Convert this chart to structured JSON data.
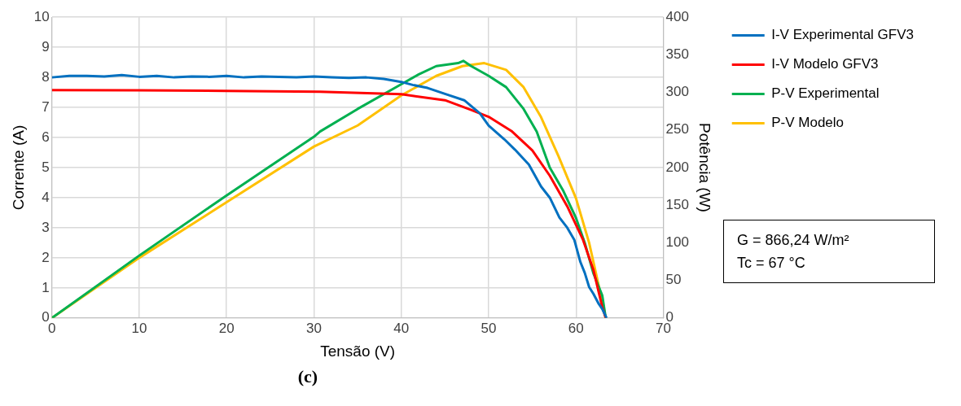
{
  "chart_data": {
    "type": "line",
    "xlabel": "Tensão (V)",
    "ylabel": "Corrente (A)",
    "y2label": "Potência (W)",
    "xlim": [
      0,
      70
    ],
    "xticks": [
      0,
      10,
      20,
      30,
      40,
      50,
      60,
      70
    ],
    "ylim": [
      0,
      10
    ],
    "yticks": [
      0,
      1,
      2,
      3,
      4,
      5,
      6,
      7,
      8,
      9,
      10
    ],
    "y2lim": [
      0,
      400
    ],
    "y2ticks": [
      0,
      50,
      100,
      150,
      200,
      250,
      300,
      350,
      400
    ],
    "grid": true,
    "legend": "right",
    "marker": "none",
    "line_style": "solid",
    "annotations": [
      "G = 866,24 W/m²\nTc = 67 °C",
      "(c)"
    ],
    "series": [
      {
        "name": "I-V Experimental GFV3",
        "color": "#0070c0",
        "x": [
          0,
          2,
          4,
          6,
          8,
          10,
          12,
          14,
          16,
          18,
          20,
          22,
          24,
          26,
          28,
          30,
          32,
          34,
          36,
          38,
          40,
          41.3,
          43,
          45,
          47.2,
          49,
          50,
          51.8,
          53,
          54.6,
          56,
          57,
          58.1,
          59,
          59.8,
          60.5,
          61,
          61.5,
          62,
          62.6,
          63,
          63.5
        ],
        "values": [
          8.0,
          8.05,
          8.05,
          8.03,
          8.08,
          8.02,
          8.05,
          8.0,
          8.03,
          8.02,
          8.05,
          8.0,
          8.03,
          8.02,
          8.0,
          8.03,
          8.0,
          7.98,
          8.0,
          7.95,
          7.85,
          7.75,
          7.65,
          7.45,
          7.24,
          6.8,
          6.4,
          5.94,
          5.6,
          5.1,
          4.37,
          4.0,
          3.34,
          3.0,
          2.6,
          1.86,
          1.5,
          1.03,
          0.8,
          0.47,
          0.3,
          0
        ]
      },
      {
        "name": "I-V Modelo GFV3",
        "color": "#ff0000",
        "x": [
          0,
          10,
          20,
          30.7,
          40,
          45,
          48,
          50,
          52.6,
          55,
          57,
          59,
          60.8,
          62,
          63,
          63.4
        ],
        "values": [
          7.58,
          7.57,
          7.55,
          7.52,
          7.44,
          7.24,
          6.92,
          6.69,
          6.22,
          5.57,
          4.73,
          3.71,
          2.6,
          1.59,
          0.37,
          0
        ]
      },
      {
        "name": "P-V Experimental",
        "color": "#00b050",
        "axis": "y2",
        "x": [
          0,
          10,
          20,
          30,
          30.7,
          35,
          40,
          42,
          44,
          46.5,
          47.1,
          48,
          50,
          52,
          54,
          55.5,
          57,
          58.5,
          60,
          61,
          62,
          63,
          63.4
        ],
        "values": [
          0,
          83,
          163,
          241,
          248,
          278,
          311,
          324,
          335,
          339,
          342,
          335,
          322,
          307,
          278,
          248,
          200,
          170,
          133,
          100,
          59,
          30,
          0
        ]
      },
      {
        "name": "P-V Modelo",
        "color": "#ffc000",
        "axis": "y2",
        "x": [
          0,
          10,
          20,
          30,
          35,
          40,
          44,
          47,
          49.5,
          52,
          54,
          56,
          58,
          60,
          61.5,
          62.5,
          63.4
        ],
        "values": [
          0,
          80,
          154,
          228,
          256,
          296,
          322,
          335,
          339,
          330,
          307,
          267,
          215,
          159,
          100,
          48,
          0
        ]
      }
    ]
  }
}
